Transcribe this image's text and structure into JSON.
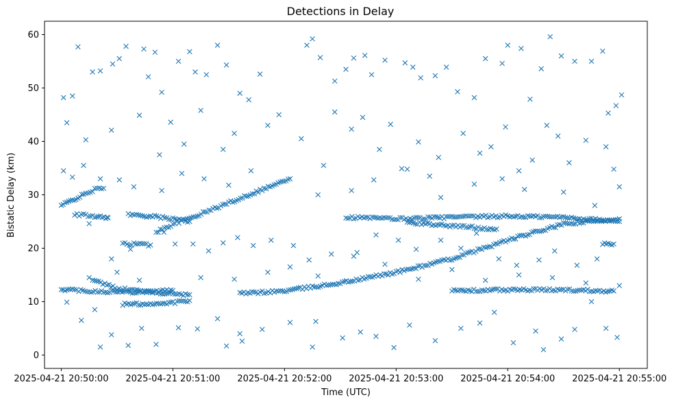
{
  "chart_data": {
    "type": "scatter",
    "title": "Detections in Delay",
    "xlabel": "Time (UTC)",
    "ylabel": "Bistatic Delay (km)",
    "marker": "x",
    "color": "#1f77b4",
    "grid": false,
    "x_unit": "minutes after 2025-04-21 20:50:00",
    "xlim": [
      -0.15,
      5.25
    ],
    "ylim": [
      -2.5,
      62.5
    ],
    "x_ticks": [
      {
        "value": 0,
        "label": "2025-04-21 20:50:00"
      },
      {
        "value": 1,
        "label": "2025-04-21 20:51:00"
      },
      {
        "value": 2,
        "label": "2025-04-21 20:52:00"
      },
      {
        "value": 3,
        "label": "2025-04-21 20:53:00"
      },
      {
        "value": 4,
        "label": "2025-04-21 20:54:00"
      },
      {
        "value": 5,
        "label": "2025-04-21 20:55:00"
      }
    ],
    "y_ticks": [
      {
        "value": 0,
        "label": "0"
      },
      {
        "value": 10,
        "label": "10"
      },
      {
        "value": 20,
        "label": "20"
      },
      {
        "value": 30,
        "label": "30"
      },
      {
        "value": 40,
        "label": "40"
      },
      {
        "value": 50,
        "label": "50"
      },
      {
        "value": 60,
        "label": "60"
      }
    ],
    "tracks": [
      {
        "name": "rising-track-1",
        "x": [
          0.0,
          0.1,
          0.2,
          0.3,
          0.38
        ],
        "y": [
          28.0,
          29.0,
          30.0,
          31.0,
          31.2
        ]
      },
      {
        "name": "band-26-early",
        "x": [
          0.12,
          0.2,
          0.3,
          0.4,
          0.42
        ],
        "y": [
          26.3,
          26.2,
          26.0,
          25.8,
          25.7
        ]
      },
      {
        "name": "descending-track",
        "x": [
          0.28,
          0.5,
          0.8,
          1.0,
          1.15
        ],
        "y": [
          14.0,
          12.5,
          11.8,
          11.5,
          11.3
        ]
      },
      {
        "name": "band-26-mid",
        "x": [
          0.6,
          0.8,
          1.0,
          1.15
        ],
        "y": [
          26.3,
          26.0,
          25.5,
          25.0
        ]
      },
      {
        "name": "rising-track-2",
        "x": [
          0.85,
          1.0,
          1.2,
          1.5,
          1.8,
          2.05
        ],
        "y": [
          23.0,
          24.5,
          26.0,
          28.5,
          31.0,
          33.0
        ]
      },
      {
        "name": "band-21",
        "x": [
          0.55,
          0.65,
          0.8
        ],
        "y": [
          20.8,
          20.8,
          20.6
        ]
      },
      {
        "name": "band-12-low",
        "x": [
          0.0,
          0.1,
          0.25,
          0.6,
          1.0
        ],
        "y": [
          12.3,
          12.2,
          12.0,
          11.8,
          12.1
        ]
      },
      {
        "name": "band-9-low",
        "x": [
          0.55,
          0.8,
          1.0,
          1.15
        ],
        "y": [
          9.5,
          9.6,
          9.8,
          10.2
        ]
      },
      {
        "name": "long-rising-track",
        "x": [
          1.6,
          2.0,
          2.5,
          3.0,
          3.5,
          4.0,
          4.5,
          5.0
        ],
        "y": [
          11.5,
          12.0,
          13.5,
          15.5,
          18.0,
          21.5,
          24.5,
          25.5
        ]
      },
      {
        "name": "band-26-late",
        "x": [
          2.55,
          3.0,
          3.5,
          4.0,
          4.5,
          5.0
        ],
        "y": [
          25.8,
          25.5,
          25.8,
          26.0,
          25.8,
          25.0
        ]
      },
      {
        "name": "band-24-late",
        "x": [
          3.1,
          3.5,
          3.9
        ],
        "y": [
          24.8,
          24.2,
          23.6
        ]
      },
      {
        "name": "band-12-late",
        "x": [
          3.5,
          4.0,
          4.5,
          4.95
        ],
        "y": [
          12.0,
          12.2,
          12.2,
          12.0
        ]
      },
      {
        "name": "band-21-late",
        "x": [
          4.85,
          4.95
        ],
        "y": [
          20.8,
          20.8
        ]
      }
    ],
    "random_points": [
      [
        0.02,
        48.2
      ],
      [
        0.05,
        43.5
      ],
      [
        0.1,
        48.5
      ],
      [
        0.15,
        57.7
      ],
      [
        0.28,
        53.0
      ],
      [
        0.35,
        53.2
      ],
      [
        0.46,
        54.5
      ],
      [
        0.52,
        55.5
      ],
      [
        0.58,
        57.8
      ],
      [
        0.7,
        44.9
      ],
      [
        0.74,
        57.3
      ],
      [
        0.78,
        52.1
      ],
      [
        0.84,
        56.7
      ],
      [
        0.9,
        49.2
      ],
      [
        1.05,
        55.0
      ],
      [
        1.15,
        56.8
      ],
      [
        1.2,
        53.0
      ],
      [
        1.3,
        52.5
      ],
      [
        1.4,
        58.0
      ],
      [
        1.48,
        54.3
      ],
      [
        1.6,
        49.0
      ],
      [
        1.68,
        47.8
      ],
      [
        1.78,
        52.6
      ],
      [
        2.2,
        58.0
      ],
      [
        2.25,
        59.2
      ],
      [
        2.32,
        55.7
      ],
      [
        2.45,
        51.3
      ],
      [
        2.55,
        53.5
      ],
      [
        2.62,
        55.6
      ],
      [
        2.72,
        56.1
      ],
      [
        2.78,
        52.5
      ],
      [
        2.9,
        55.2
      ],
      [
        3.08,
        54.7
      ],
      [
        3.15,
        53.9
      ],
      [
        3.22,
        51.9
      ],
      [
        3.35,
        52.3
      ],
      [
        3.45,
        53.9
      ],
      [
        3.55,
        49.3
      ],
      [
        3.7,
        48.2
      ],
      [
        3.8,
        55.5
      ],
      [
        3.95,
        54.6
      ],
      [
        4.0,
        58.0
      ],
      [
        4.12,
        57.4
      ],
      [
        4.2,
        47.9
      ],
      [
        4.3,
        53.6
      ],
      [
        4.38,
        59.6
      ],
      [
        4.48,
        56.0
      ],
      [
        4.6,
        55.0
      ],
      [
        4.75,
        55.0
      ],
      [
        4.85,
        56.9
      ],
      [
        4.9,
        45.3
      ],
      [
        4.97,
        46.7
      ],
      [
        5.02,
        48.7
      ],
      [
        0.22,
        40.3
      ],
      [
        0.45,
        42.1
      ],
      [
        0.88,
        37.5
      ],
      [
        0.98,
        43.6
      ],
      [
        1.1,
        39.5
      ],
      [
        1.25,
        45.8
      ],
      [
        1.45,
        38.5
      ],
      [
        1.55,
        41.5
      ],
      [
        1.7,
        34.5
      ],
      [
        1.85,
        43.0
      ],
      [
        1.95,
        45.0
      ],
      [
        2.15,
        40.5
      ],
      [
        2.35,
        35.5
      ],
      [
        2.45,
        45.5
      ],
      [
        2.6,
        42.3
      ],
      [
        2.7,
        44.5
      ],
      [
        2.85,
        38.5
      ],
      [
        2.95,
        43.2
      ],
      [
        3.05,
        34.9
      ],
      [
        3.2,
        39.9
      ],
      [
        3.3,
        33.5
      ],
      [
        3.38,
        37.0
      ],
      [
        3.6,
        41.5
      ],
      [
        3.75,
        37.8
      ],
      [
        3.85,
        39.0
      ],
      [
        3.98,
        42.7
      ],
      [
        4.1,
        34.5
      ],
      [
        4.22,
        36.5
      ],
      [
        4.35,
        43.0
      ],
      [
        4.45,
        41.0
      ],
      [
        4.55,
        36.0
      ],
      [
        4.7,
        40.2
      ],
      [
        4.88,
        39.0
      ],
      [
        4.95,
        34.8
      ],
      [
        0.02,
        34.5
      ],
      [
        0.1,
        33.3
      ],
      [
        0.2,
        35.5
      ],
      [
        0.35,
        33.0
      ],
      [
        0.52,
        32.8
      ],
      [
        0.65,
        31.5
      ],
      [
        0.9,
        30.8
      ],
      [
        1.08,
        34.0
      ],
      [
        1.28,
        33.0
      ],
      [
        1.5,
        31.8
      ],
      [
        2.3,
        30.0
      ],
      [
        2.6,
        30.8
      ],
      [
        2.8,
        32.8
      ],
      [
        3.1,
        34.8
      ],
      [
        3.4,
        29.5
      ],
      [
        3.7,
        32.0
      ],
      [
        3.95,
        33.0
      ],
      [
        4.15,
        31.0
      ],
      [
        4.5,
        30.5
      ],
      [
        4.78,
        28.0
      ],
      [
        5.0,
        31.5
      ],
      [
        0.25,
        24.6
      ],
      [
        0.45,
        18.0
      ],
      [
        0.62,
        19.8
      ],
      [
        0.92,
        23.0
      ],
      [
        1.02,
        20.8
      ],
      [
        1.18,
        20.8
      ],
      [
        1.32,
        19.5
      ],
      [
        1.45,
        21.0
      ],
      [
        1.58,
        22.0
      ],
      [
        1.72,
        20.5
      ],
      [
        1.88,
        21.5
      ],
      [
        2.08,
        20.5
      ],
      [
        2.22,
        17.8
      ],
      [
        2.42,
        18.9
      ],
      [
        2.62,
        18.5
      ],
      [
        2.82,
        22.5
      ],
      [
        3.02,
        21.5
      ],
      [
        3.18,
        19.8
      ],
      [
        3.4,
        21.5
      ],
      [
        3.58,
        20.0
      ],
      [
        3.72,
        22.8
      ],
      [
        3.92,
        18.0
      ],
      [
        4.08,
        16.8
      ],
      [
        4.28,
        17.8
      ],
      [
        4.42,
        19.5
      ],
      [
        4.62,
        16.8
      ],
      [
        4.8,
        18.0
      ],
      [
        0.05,
        9.9
      ],
      [
        0.18,
        6.5
      ],
      [
        0.3,
        8.5
      ],
      [
        0.35,
        1.5
      ],
      [
        0.45,
        3.8
      ],
      [
        0.6,
        1.8
      ],
      [
        0.72,
        5.0
      ],
      [
        0.85,
        2.0
      ],
      [
        1.05,
        5.1
      ],
      [
        1.22,
        4.9
      ],
      [
        1.4,
        6.8
      ],
      [
        1.48,
        1.7
      ],
      [
        1.6,
        4.0
      ],
      [
        1.62,
        2.6
      ],
      [
        1.8,
        4.8
      ],
      [
        2.05,
        6.1
      ],
      [
        2.25,
        1.5
      ],
      [
        2.28,
        6.3
      ],
      [
        2.52,
        3.2
      ],
      [
        2.68,
        4.3
      ],
      [
        2.82,
        3.5
      ],
      [
        2.98,
        1.4
      ],
      [
        3.12,
        5.6
      ],
      [
        3.35,
        2.7
      ],
      [
        3.58,
        5.0
      ],
      [
        3.75,
        6.0
      ],
      [
        3.88,
        8.0
      ],
      [
        4.05,
        2.3
      ],
      [
        4.25,
        4.5
      ],
      [
        4.32,
        1.0
      ],
      [
        4.48,
        3.0
      ],
      [
        4.6,
        4.8
      ],
      [
        4.75,
        10.0
      ],
      [
        4.88,
        5.0
      ],
      [
        4.98,
        3.3
      ],
      [
        0.25,
        14.5
      ],
      [
        0.5,
        15.5
      ],
      [
        0.7,
        14.0
      ],
      [
        1.25,
        14.5
      ],
      [
        1.55,
        14.2
      ],
      [
        1.85,
        15.5
      ],
      [
        2.05,
        16.5
      ],
      [
        2.3,
        14.8
      ],
      [
        2.65,
        19.2
      ],
      [
        2.9,
        17.0
      ],
      [
        3.2,
        14.2
      ],
      [
        3.5,
        16.0
      ],
      [
        3.8,
        14.0
      ],
      [
        4.1,
        15.0
      ],
      [
        4.4,
        14.5
      ],
      [
        4.7,
        13.5
      ],
      [
        5.0,
        13.0
      ]
    ]
  }
}
